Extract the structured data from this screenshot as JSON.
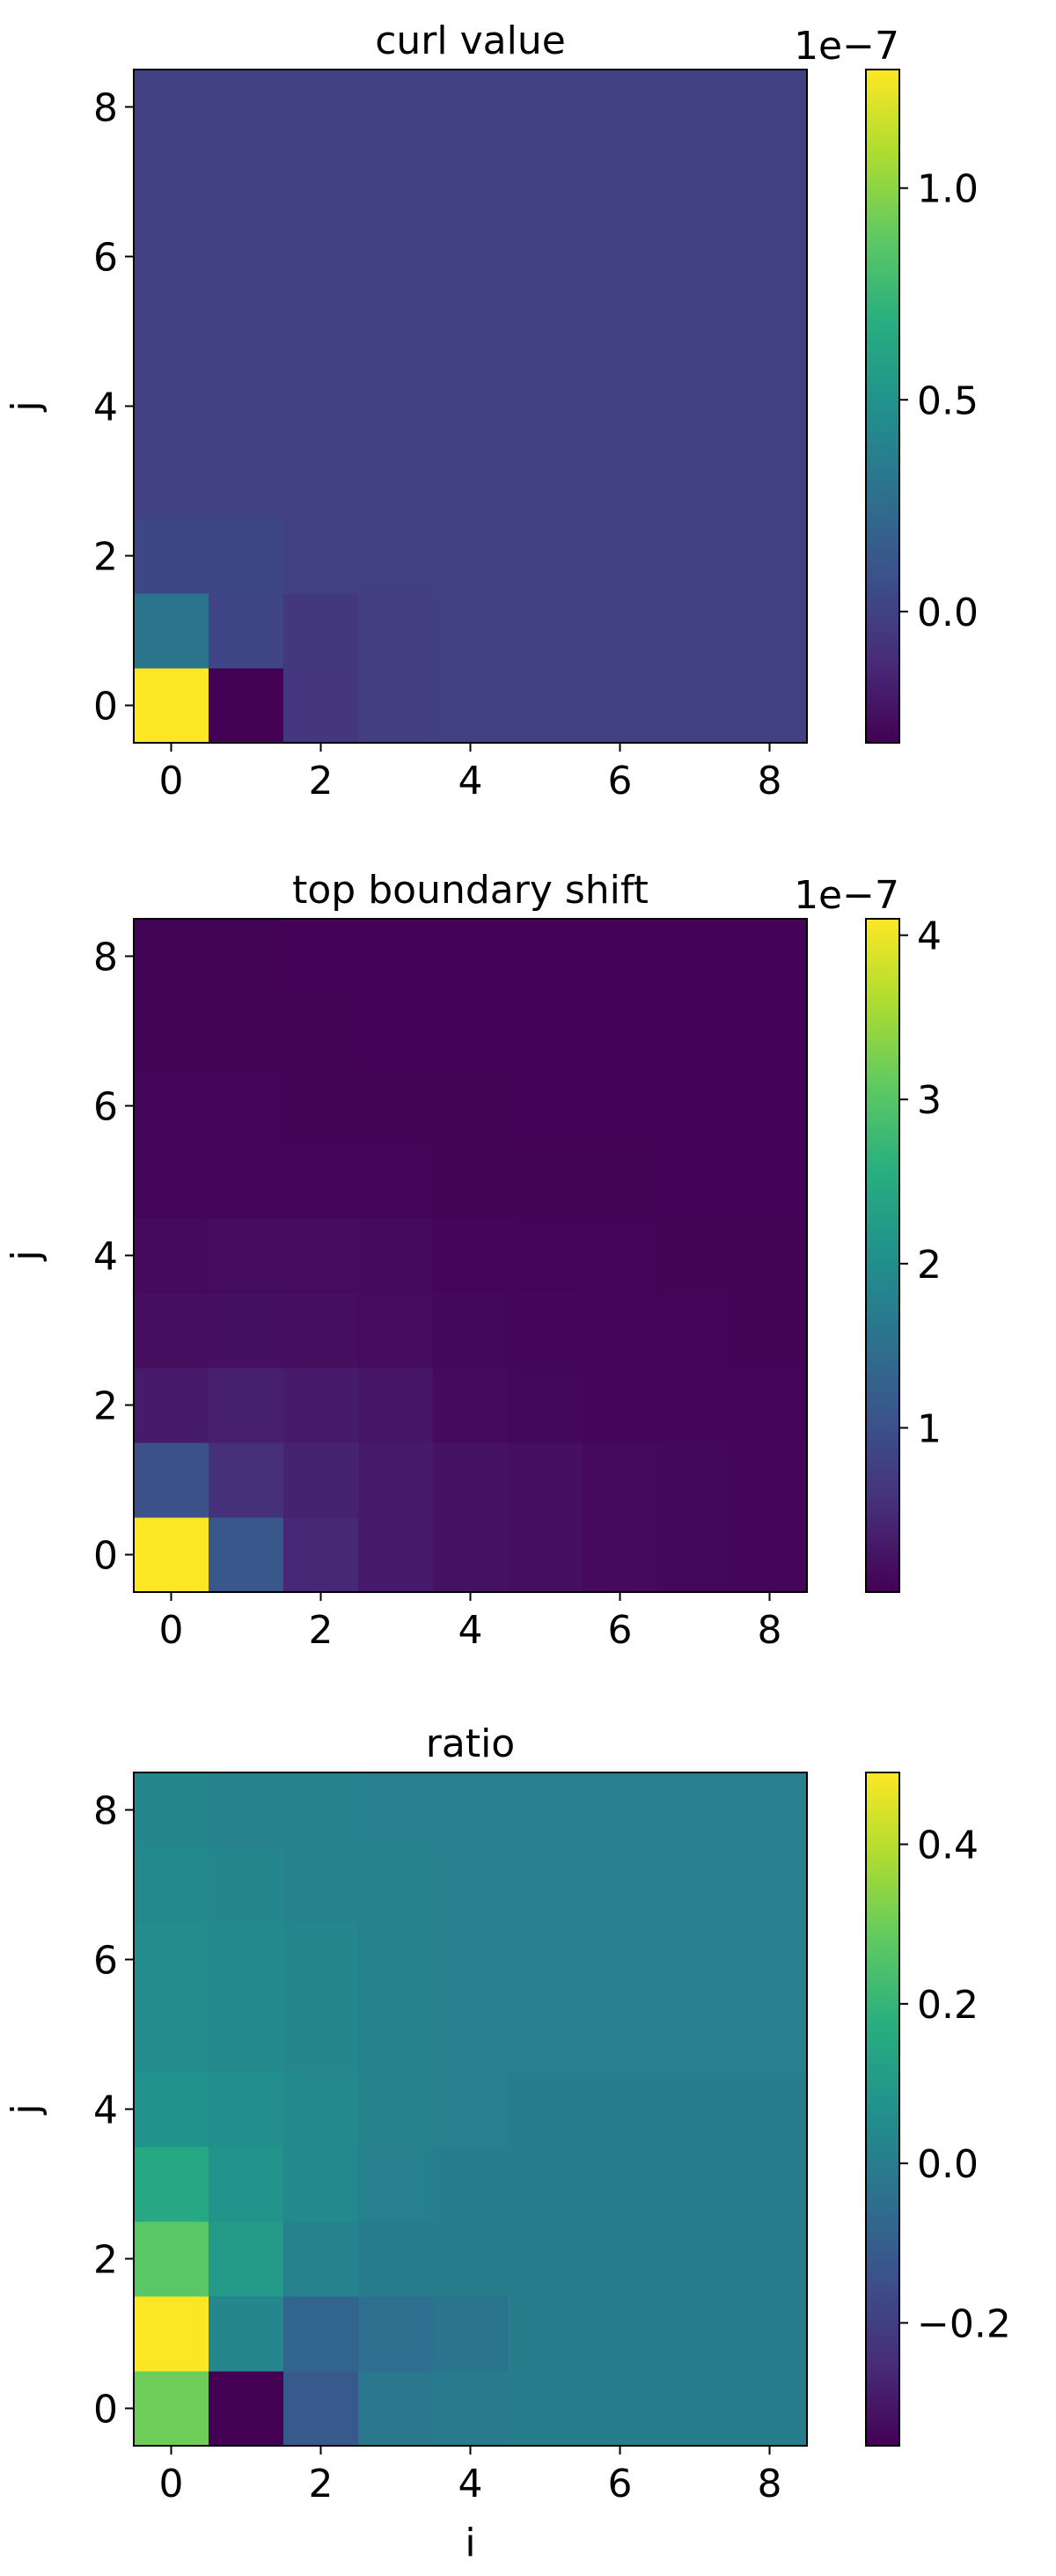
{
  "chart_data": [
    {
      "type": "heatmap",
      "title": "curl value",
      "ylabel": "j",
      "colormap": "viridis",
      "xlim": [
        -0.5,
        8.5
      ],
      "ylim": [
        -0.5,
        8.5
      ],
      "xticks": [
        0,
        2,
        4,
        6,
        8
      ],
      "yticks": [
        0,
        2,
        4,
        6,
        8
      ],
      "clim": [
        -0.31,
        1.28
      ],
      "cticks": [
        {
          "value": 0,
          "label": "0.0"
        },
        0.5,
        {
          "value": 1,
          "label": "1.0"
        }
      ],
      "scale_label": "1e−7",
      "z": [
        [
          1.28,
          -0.31,
          -0.06,
          -0.02,
          -0.01,
          -0.01,
          -0.01,
          -0.01,
          -0.01
        ],
        [
          0.3,
          0.02,
          -0.05,
          -0.02,
          -0.01,
          -0.01,
          -0.01,
          -0.01,
          -0.01
        ],
        [
          0.03,
          0.03,
          -0.01,
          -0.01,
          -0.01,
          -0.01,
          -0.01,
          -0.01,
          -0.01
        ],
        [
          -0.01,
          -0.01,
          -0.01,
          -0.01,
          -0.01,
          -0.01,
          -0.01,
          -0.01,
          -0.01
        ],
        [
          -0.01,
          -0.01,
          -0.01,
          -0.01,
          -0.01,
          -0.01,
          -0.01,
          -0.01,
          -0.01
        ],
        [
          -0.01,
          -0.01,
          -0.01,
          -0.01,
          -0.01,
          -0.01,
          -0.01,
          -0.01,
          -0.01
        ],
        [
          -0.01,
          -0.01,
          -0.01,
          -0.01,
          -0.01,
          -0.01,
          -0.01,
          -0.01,
          -0.01
        ],
        [
          -0.01,
          -0.01,
          -0.01,
          -0.01,
          -0.01,
          -0.01,
          -0.01,
          -0.01,
          -0.01
        ],
        [
          -0.01,
          -0.01,
          -0.01,
          -0.01,
          -0.01,
          -0.01,
          -0.01,
          -0.01,
          -0.01
        ]
      ]
    },
    {
      "type": "heatmap",
      "title": "top boundary shift",
      "ylabel": "j",
      "colormap": "viridis",
      "xlim": [
        -0.5,
        8.5
      ],
      "ylim": [
        -0.5,
        8.5
      ],
      "xticks": [
        0,
        2,
        4,
        6,
        8
      ],
      "yticks": [
        0,
        2,
        4,
        6,
        8
      ],
      "clim": [
        0,
        4.1
      ],
      "cticks": [
        1,
        2,
        3,
        4
      ],
      "scale_label": "1e−7",
      "z": [
        [
          4.1,
          1.1,
          0.45,
          0.3,
          0.2,
          0.15,
          0.1,
          0.08,
          0.06
        ],
        [
          1.0,
          0.55,
          0.4,
          0.3,
          0.2,
          0.15,
          0.1,
          0.08,
          0.06
        ],
        [
          0.3,
          0.35,
          0.3,
          0.25,
          0.1,
          0.08,
          0.06,
          0.05,
          0.04
        ],
        [
          0.15,
          0.18,
          0.15,
          0.12,
          0.08,
          0.06,
          0.05,
          0.04,
          0.03
        ],
        [
          0.1,
          0.12,
          0.12,
          0.1,
          0.06,
          0.05,
          0.04,
          0.03,
          0.03
        ],
        [
          0.05,
          0.05,
          0.04,
          0.04,
          0.03,
          0.03,
          0.03,
          0.02,
          0.02
        ],
        [
          0.04,
          0.04,
          0.03,
          0.03,
          0.03,
          0.02,
          0.02,
          0.02,
          0.02
        ],
        [
          0.03,
          0.03,
          0.03,
          0.02,
          0.02,
          0.02,
          0.02,
          0.02,
          0.02
        ],
        [
          0.03,
          0.03,
          0.02,
          0.02,
          0.02,
          0.02,
          0.02,
          0.02,
          0.02
        ]
      ]
    },
    {
      "type": "heatmap",
      "title": "ratio",
      "xlabel": "i",
      "ylabel": "j",
      "colormap": "viridis",
      "xlim": [
        -0.5,
        8.5
      ],
      "ylim": [
        -0.5,
        8.5
      ],
      "xticks": [
        0,
        2,
        4,
        6,
        8
      ],
      "yticks": [
        0,
        2,
        4,
        6,
        8
      ],
      "clim": [
        -0.354,
        0.49
      ],
      "cticks": [
        {
          "value": -0.2,
          "label": "−0.2"
        },
        {
          "value": 0,
          "label": "0.0"
        },
        0.2,
        0.4
      ],
      "z": [
        [
          0.3,
          -0.354,
          -0.12,
          -0.02,
          -0.01,
          0.0,
          0.0,
          0.0,
          0.0
        ],
        [
          0.49,
          0.03,
          -0.08,
          -0.05,
          -0.03,
          0.0,
          0.0,
          0.0,
          0.0
        ],
        [
          0.27,
          0.1,
          0.02,
          0.0,
          0.0,
          0.0,
          0.0,
          0.0,
          0.0
        ],
        [
          0.15,
          0.08,
          0.04,
          0.01,
          0.0,
          0.0,
          0.0,
          0.0,
          0.0
        ],
        [
          0.07,
          0.06,
          0.04,
          0.02,
          0.01,
          0.0,
          0.0,
          0.0,
          0.0
        ],
        [
          0.05,
          0.04,
          0.03,
          0.02,
          0.01,
          0.01,
          0.01,
          0.01,
          0.01
        ],
        [
          0.05,
          0.04,
          0.03,
          0.02,
          0.01,
          0.01,
          0.01,
          0.01,
          0.01
        ],
        [
          0.04,
          0.03,
          0.02,
          0.02,
          0.01,
          0.01,
          0.01,
          0.01,
          0.01
        ],
        [
          0.03,
          0.02,
          0.02,
          0.01,
          0.01,
          0.01,
          0.01,
          0.01,
          0.01
        ]
      ]
    }
  ]
}
